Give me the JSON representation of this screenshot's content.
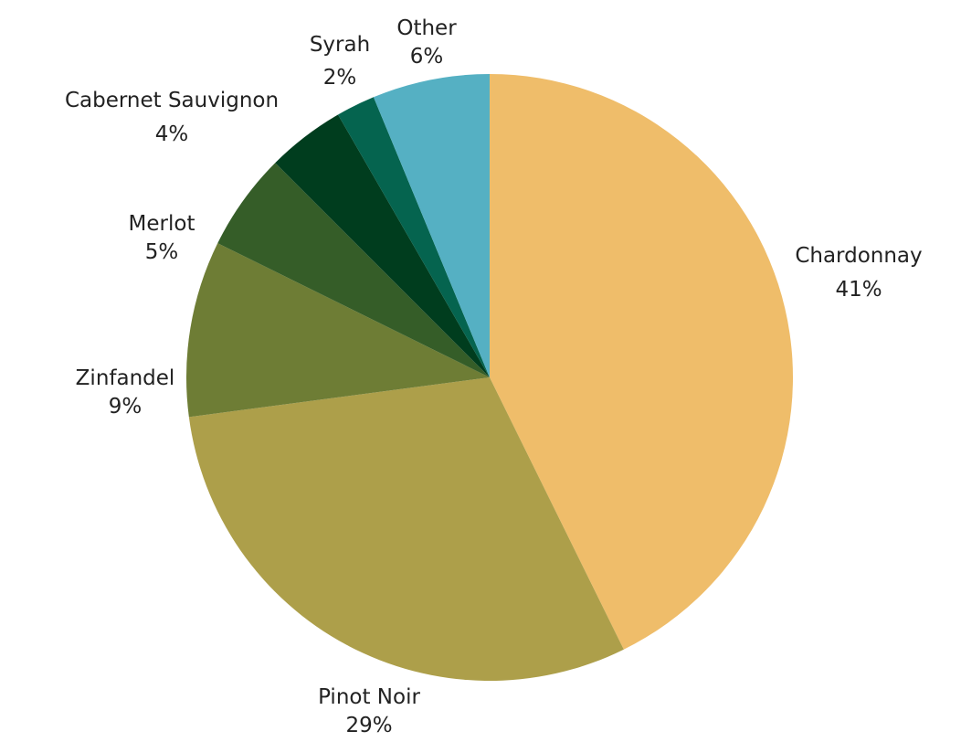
{
  "chart_data": {
    "type": "pie",
    "title": "",
    "start_angle_deg": 0,
    "direction": "clockwise",
    "slices": [
      {
        "label": "Chardonnay",
        "value": 41,
        "display": "41%",
        "color": "#EFBD6A"
      },
      {
        "label": "Pinot Noir",
        "value": 29,
        "display": "29%",
        "color": "#AD9F4A"
      },
      {
        "label": "Zinfandel",
        "value": 9,
        "display": "9%",
        "color": "#6E7D35"
      },
      {
        "label": "Merlot",
        "value": 5,
        "display": "5%",
        "color": "#355D28"
      },
      {
        "label": "Cabernet Sauvignon",
        "value": 4,
        "display": "4%",
        "color": "#003D1E"
      },
      {
        "label": "Syrah",
        "value": 2,
        "display": "2%",
        "color": "#05644F"
      },
      {
        "label": "Other",
        "value": 6,
        "display": "6%",
        "color": "#55B0C3"
      }
    ]
  }
}
